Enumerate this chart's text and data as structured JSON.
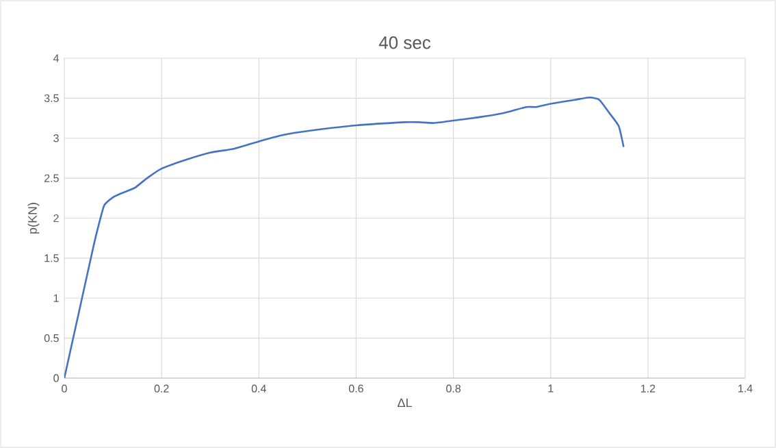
{
  "chart_data": {
    "type": "line",
    "title": "40 sec",
    "xlabel": "ΔL",
    "ylabel": "p(KN)",
    "xlim": [
      0,
      1.4
    ],
    "ylim": [
      0,
      4
    ],
    "xticks": [
      0,
      0.2,
      0.4,
      0.6,
      0.8,
      1,
      1.2,
      1.4
    ],
    "yticks": [
      0,
      0.5,
      1,
      1.5,
      2,
      2.5,
      3,
      3.5,
      4
    ],
    "grid": true,
    "marker": "none",
    "line_style": "solid",
    "series": [
      {
        "color": "#4472c4",
        "x": [
          0,
          0.02,
          0.04,
          0.06,
          0.07,
          0.082,
          0.1,
          0.117,
          0.145,
          0.17,
          0.2,
          0.25,
          0.3,
          0.35,
          0.4,
          0.45,
          0.5,
          0.6,
          0.7,
          0.73,
          0.76,
          0.8,
          0.85,
          0.9,
          0.95,
          0.97,
          1.0,
          1.05,
          1.08,
          1.1,
          1.12,
          1.14,
          1.15
        ],
        "values": [
          0,
          0.55,
          1.1,
          1.65,
          1.9,
          2.16,
          2.26,
          2.31,
          2.38,
          2.5,
          2.62,
          2.73,
          2.82,
          2.87,
          2.96,
          3.04,
          3.09,
          3.16,
          3.2,
          3.2,
          3.19,
          3.22,
          3.26,
          3.31,
          3.39,
          3.39,
          3.43,
          3.48,
          3.51,
          3.48,
          3.32,
          3.15,
          2.89
        ]
      }
    ]
  }
}
